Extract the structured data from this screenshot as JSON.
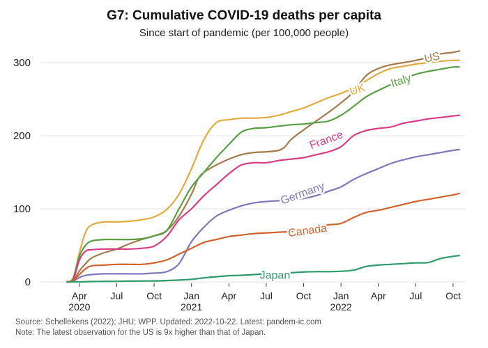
{
  "chart_data": {
    "type": "line",
    "title": "G7: Cumulative COVID-19 deaths per capita",
    "subtitle": "Since start of pandemic (per 100,000 people)",
    "xlabel": "",
    "ylabel": "",
    "ylim": [
      0,
      320
    ],
    "grid": true,
    "y_ticks": [
      0,
      100,
      200,
      300
    ],
    "x_ticks": [
      {
        "t": 1,
        "lines": [
          "Apr",
          "2020"
        ]
      },
      {
        "t": 4,
        "lines": [
          "Jul"
        ]
      },
      {
        "t": 7,
        "lines": [
          "Oct"
        ]
      },
      {
        "t": 10,
        "lines": [
          "Jan",
          "2021"
        ]
      },
      {
        "t": 13,
        "lines": [
          "Apr"
        ]
      },
      {
        "t": 16,
        "lines": [
          "Jul"
        ]
      },
      {
        "t": 19,
        "lines": [
          "Oct"
        ]
      },
      {
        "t": 22,
        "lines": [
          "Jan",
          "2022"
        ]
      },
      {
        "t": 25,
        "lines": [
          "Apr"
        ]
      },
      {
        "t": 28,
        "lines": [
          "Jul"
        ]
      },
      {
        "t": 31,
        "lines": [
          "Oct"
        ]
      }
    ],
    "x_units": "months since 2020-03",
    "series": [
      {
        "name": "US",
        "color": "#a6794a",
        "label_at": {
          "t": 29.3,
          "v": 308,
          "rot": -12
        },
        "points": [
          [
            0,
            0
          ],
          [
            0.5,
            2
          ],
          [
            1,
            15
          ],
          [
            1.5,
            25
          ],
          [
            2,
            33
          ],
          [
            3,
            40
          ],
          [
            4,
            45
          ],
          [
            5,
            52
          ],
          [
            6,
            58
          ],
          [
            7,
            63
          ],
          [
            8,
            70
          ],
          [
            9,
            90
          ],
          [
            10,
            120
          ],
          [
            10.5,
            140
          ],
          [
            11,
            150
          ],
          [
            12,
            160
          ],
          [
            13,
            168
          ],
          [
            14,
            174
          ],
          [
            15,
            177
          ],
          [
            16,
            178
          ],
          [
            17,
            180
          ],
          [
            17.5,
            185
          ],
          [
            18,
            195
          ],
          [
            19,
            208
          ],
          [
            20,
            220
          ],
          [
            21,
            232
          ],
          [
            22,
            245
          ],
          [
            23,
            260
          ],
          [
            24,
            282
          ],
          [
            25,
            292
          ],
          [
            26,
            297
          ],
          [
            27,
            300
          ],
          [
            28,
            303
          ],
          [
            29,
            307
          ],
          [
            30,
            312
          ],
          [
            31,
            314
          ],
          [
            31.5,
            316
          ]
        ]
      },
      {
        "name": "UK",
        "color": "#e2ab3d",
        "label_at": {
          "t": 23.3,
          "v": 264,
          "rot": -18
        },
        "points": [
          [
            0,
            0
          ],
          [
            0.5,
            5
          ],
          [
            1,
            40
          ],
          [
            1.5,
            68
          ],
          [
            2,
            78
          ],
          [
            3,
            82
          ],
          [
            4,
            82
          ],
          [
            5,
            83
          ],
          [
            6,
            85
          ],
          [
            7,
            89
          ],
          [
            8,
            99
          ],
          [
            9,
            120
          ],
          [
            10,
            155
          ],
          [
            11,
            195
          ],
          [
            12,
            218
          ],
          [
            13,
            222
          ],
          [
            14,
            224
          ],
          [
            15,
            224
          ],
          [
            16,
            225
          ],
          [
            17,
            228
          ],
          [
            18,
            233
          ],
          [
            19,
            238
          ],
          [
            20,
            245
          ],
          [
            21,
            252
          ],
          [
            22,
            258
          ],
          [
            23,
            265
          ],
          [
            24,
            275
          ],
          [
            25,
            285
          ],
          [
            26,
            292
          ],
          [
            27,
            295
          ],
          [
            28,
            298
          ],
          [
            29,
            300
          ],
          [
            30,
            302
          ],
          [
            31,
            303
          ],
          [
            31.5,
            303
          ]
        ]
      },
      {
        "name": "Italy",
        "color": "#58a043",
        "label_at": {
          "t": 26.8,
          "v": 276,
          "rot": -18
        },
        "points": [
          [
            0,
            0
          ],
          [
            0.5,
            5
          ],
          [
            1,
            35
          ],
          [
            1.5,
            50
          ],
          [
            2,
            56
          ],
          [
            3,
            58
          ],
          [
            4,
            58
          ],
          [
            5,
            58
          ],
          [
            6,
            59
          ],
          [
            7,
            63
          ],
          [
            8,
            70
          ],
          [
            9,
            100
          ],
          [
            10,
            130
          ],
          [
            11,
            150
          ],
          [
            12,
            170
          ],
          [
            13,
            188
          ],
          [
            14,
            205
          ],
          [
            15,
            210
          ],
          [
            16,
            211
          ],
          [
            17,
            213
          ],
          [
            18,
            215
          ],
          [
            19,
            216
          ],
          [
            20,
            218
          ],
          [
            21,
            220
          ],
          [
            22,
            228
          ],
          [
            23,
            240
          ],
          [
            24,
            253
          ],
          [
            25,
            262
          ],
          [
            26,
            270
          ],
          [
            27,
            278
          ],
          [
            28,
            284
          ],
          [
            29,
            288
          ],
          [
            30,
            291
          ],
          [
            31,
            294
          ],
          [
            31.5,
            294
          ]
        ]
      },
      {
        "name": "France",
        "color": "#d93b87",
        "label_at": {
          "t": 20.8,
          "v": 195,
          "rot": -20
        },
        "points": [
          [
            0,
            0
          ],
          [
            0.5,
            3
          ],
          [
            1,
            30
          ],
          [
            1.5,
            42
          ],
          [
            2,
            44
          ],
          [
            3,
            45
          ],
          [
            4,
            45
          ],
          [
            5,
            45
          ],
          [
            6,
            46
          ],
          [
            7,
            49
          ],
          [
            8,
            62
          ],
          [
            9,
            85
          ],
          [
            10,
            100
          ],
          [
            11,
            118
          ],
          [
            12,
            133
          ],
          [
            13,
            148
          ],
          [
            14,
            160
          ],
          [
            15,
            163
          ],
          [
            16,
            163
          ],
          [
            17,
            166
          ],
          [
            18,
            168
          ],
          [
            19,
            170
          ],
          [
            20,
            174
          ],
          [
            21,
            178
          ],
          [
            22,
            185
          ],
          [
            23,
            200
          ],
          [
            24,
            207
          ],
          [
            25,
            210
          ],
          [
            26,
            212
          ],
          [
            27,
            217
          ],
          [
            28,
            220
          ],
          [
            29,
            223
          ],
          [
            30,
            225
          ],
          [
            31,
            227
          ],
          [
            31.5,
            228
          ]
        ]
      },
      {
        "name": "Germany",
        "color": "#8177bf",
        "label_at": {
          "t": 18.9,
          "v": 122,
          "rot": -20
        },
        "points": [
          [
            0,
            0
          ],
          [
            0.5,
            1
          ],
          [
            1,
            6
          ],
          [
            1.5,
            9
          ],
          [
            2,
            10
          ],
          [
            3,
            11
          ],
          [
            4,
            11
          ],
          [
            5,
            11
          ],
          [
            6,
            11
          ],
          [
            7,
            12
          ],
          [
            8,
            14
          ],
          [
            9,
            25
          ],
          [
            10,
            55
          ],
          [
            11,
            75
          ],
          [
            12,
            90
          ],
          [
            13,
            98
          ],
          [
            14,
            104
          ],
          [
            15,
            108
          ],
          [
            16,
            110
          ],
          [
            17,
            111
          ],
          [
            18,
            112
          ],
          [
            19,
            114
          ],
          [
            20,
            118
          ],
          [
            21,
            124
          ],
          [
            22,
            130
          ],
          [
            23,
            140
          ],
          [
            24,
            148
          ],
          [
            25,
            155
          ],
          [
            26,
            162
          ],
          [
            27,
            167
          ],
          [
            28,
            171
          ],
          [
            29,
            174
          ],
          [
            30,
            177
          ],
          [
            31,
            180
          ],
          [
            31.5,
            181
          ]
        ]
      },
      {
        "name": "Canada",
        "color": "#d4622b",
        "label_at": {
          "t": 19.3,
          "v": 71,
          "rot": -8
        },
        "points": [
          [
            0,
            0
          ],
          [
            0.5,
            2
          ],
          [
            1,
            10
          ],
          [
            1.5,
            18
          ],
          [
            2,
            22
          ],
          [
            3,
            23
          ],
          [
            4,
            24
          ],
          [
            5,
            24
          ],
          [
            6,
            24
          ],
          [
            7,
            26
          ],
          [
            8,
            30
          ],
          [
            9,
            38
          ],
          [
            10,
            46
          ],
          [
            11,
            54
          ],
          [
            12,
            58
          ],
          [
            13,
            62
          ],
          [
            14,
            64
          ],
          [
            15,
            66
          ],
          [
            16,
            67
          ],
          [
            17,
            68
          ],
          [
            18,
            69
          ],
          [
            19,
            72
          ],
          [
            20,
            75
          ],
          [
            21,
            78
          ],
          [
            22,
            80
          ],
          [
            23,
            88
          ],
          [
            24,
            95
          ],
          [
            25,
            98
          ],
          [
            26,
            102
          ],
          [
            27,
            106
          ],
          [
            28,
            110
          ],
          [
            29,
            113
          ],
          [
            30,
            116
          ],
          [
            31,
            119
          ],
          [
            31.5,
            121
          ]
        ]
      },
      {
        "name": "Japan",
        "color": "#2d9a6a",
        "label_at": {
          "t": 16.7,
          "v": 10,
          "rot": 0
        },
        "points": [
          [
            0,
            0
          ],
          [
            1,
            0
          ],
          [
            2,
            0.5
          ],
          [
            3,
            0.7
          ],
          [
            4,
            0.8
          ],
          [
            5,
            1
          ],
          [
            6,
            1.2
          ],
          [
            7,
            1.3
          ],
          [
            8,
            1.8
          ],
          [
            9,
            2.5
          ],
          [
            10,
            3.5
          ],
          [
            11,
            5.5
          ],
          [
            12,
            7
          ],
          [
            13,
            8.5
          ],
          [
            14,
            9
          ],
          [
            15,
            10
          ],
          [
            16,
            11
          ],
          [
            17,
            11.5
          ],
          [
            18,
            12.5
          ],
          [
            19,
            13.5
          ],
          [
            20,
            14
          ],
          [
            21,
            14
          ],
          [
            22,
            14.5
          ],
          [
            23,
            16
          ],
          [
            24,
            21
          ],
          [
            25,
            23
          ],
          [
            26,
            24
          ],
          [
            27,
            25
          ],
          [
            28,
            26
          ],
          [
            29,
            26.5
          ],
          [
            30,
            32
          ],
          [
            31,
            35
          ],
          [
            31.5,
            36
          ]
        ]
      }
    ],
    "annotations": [
      "Source: Schellekens (2022); JHU; WPP. Updated: 2022-10-22. Latest: pandem-ic.com",
      "Note: The latest observation for the US is 9x higher than that of Japan."
    ]
  }
}
